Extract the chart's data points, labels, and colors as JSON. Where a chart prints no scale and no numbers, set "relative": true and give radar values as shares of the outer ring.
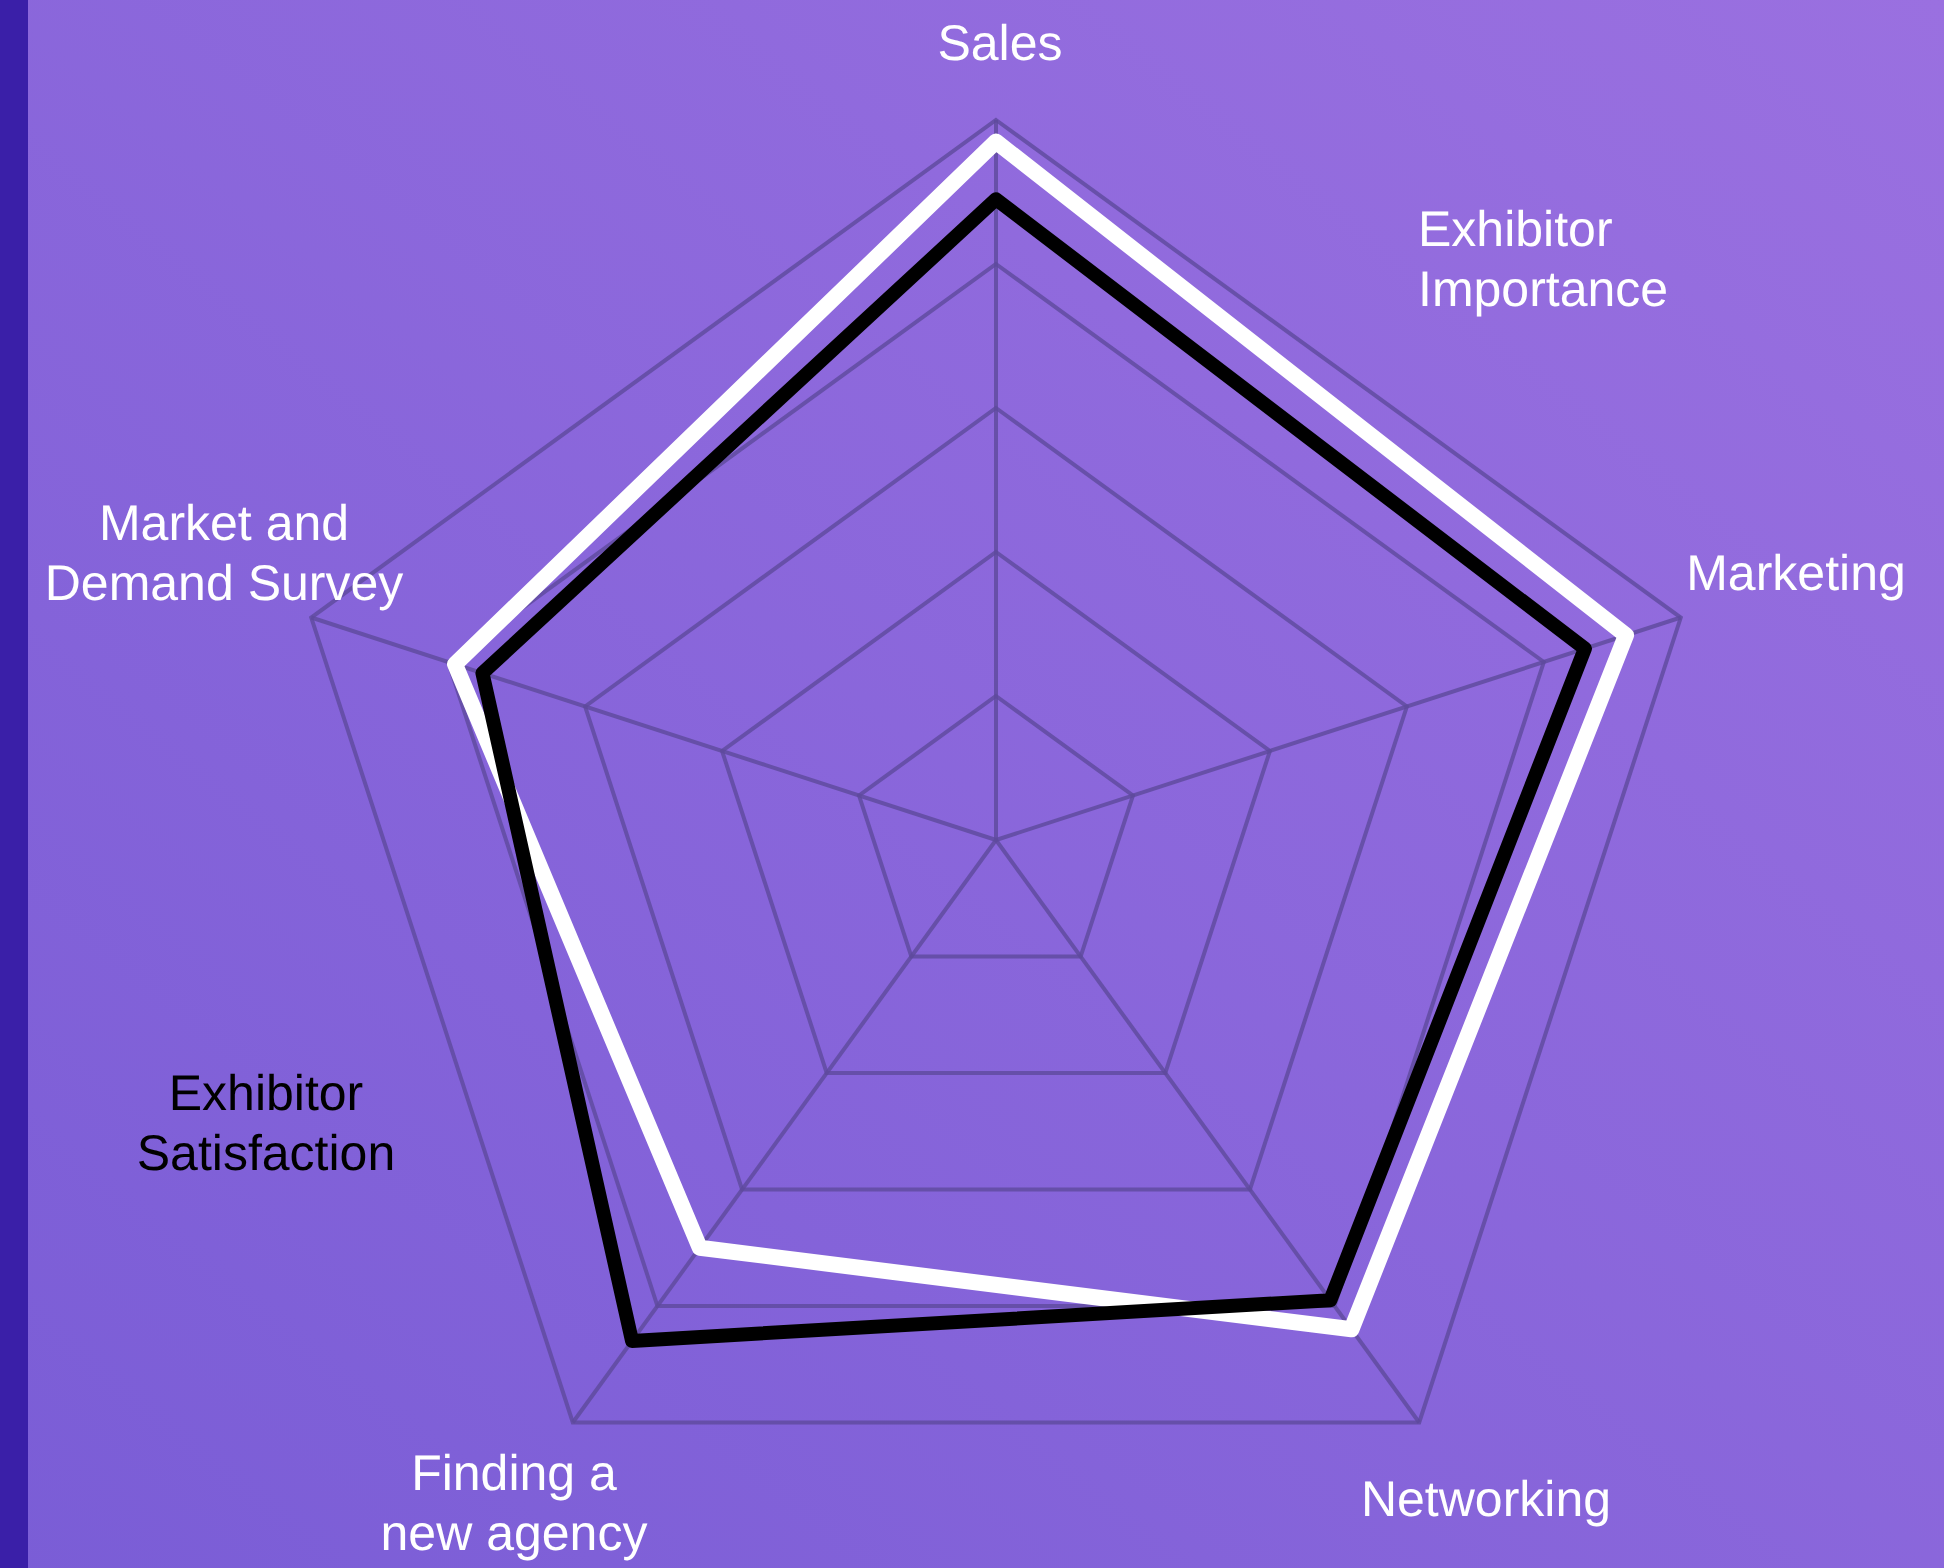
{
  "chart_data": {
    "type": "radar",
    "relative": true,
    "grid": true,
    "legend": false,
    "marker": "none",
    "line_style": "solid",
    "categories": [
      "Sales",
      "Marketing",
      "Networking",
      "Finding a new agency",
      "Market and Demand Survey"
    ],
    "series": [
      {
        "name": "Exhibitor Importance",
        "color": "#ffffff",
        "values": [
          0.97,
          0.92,
          0.84,
          0.7,
          0.79
        ]
      },
      {
        "name": "Exhibitor Satisfaction",
        "color": "#000000",
        "values": [
          0.89,
          0.86,
          0.79,
          0.86,
          0.75
        ]
      }
    ]
  }
}
